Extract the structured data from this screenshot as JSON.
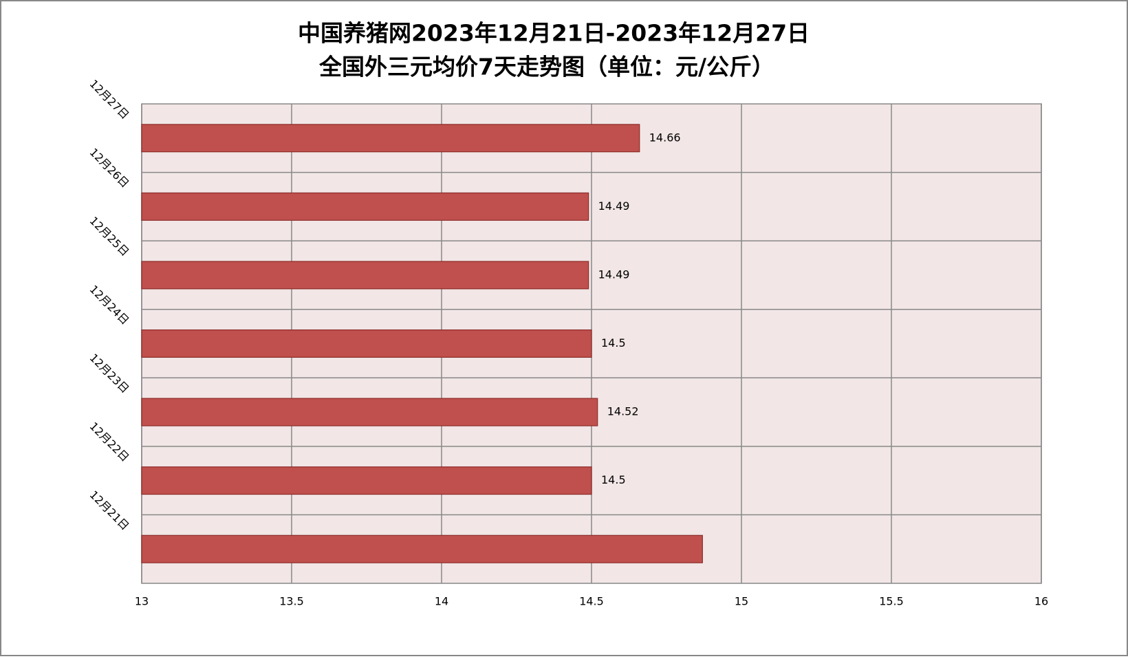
{
  "chart_data": {
    "type": "barh",
    "title": [
      "中国养猪网2023年12月21日-2023年12月27日",
      "全国外三元均价7天走势图（单位：元/公斤）"
    ],
    "categories": [
      "12月21日",
      "12月22日",
      "12月23日",
      "12月24日",
      "12月25日",
      "12月26日",
      "12月27日"
    ],
    "values": [
      14.87,
      14.5,
      14.52,
      14.5,
      14.49,
      14.49,
      14.66
    ],
    "value_labels": [
      null,
      "14.5",
      "14.52",
      "14.5",
      "14.49",
      "14.49",
      "14.66"
    ],
    "color": "#c0504d",
    "xlim": [
      13,
      16
    ],
    "xticks": [
      13,
      13.5,
      14,
      14.5,
      15,
      15.5,
      16
    ],
    "grid": true
  }
}
